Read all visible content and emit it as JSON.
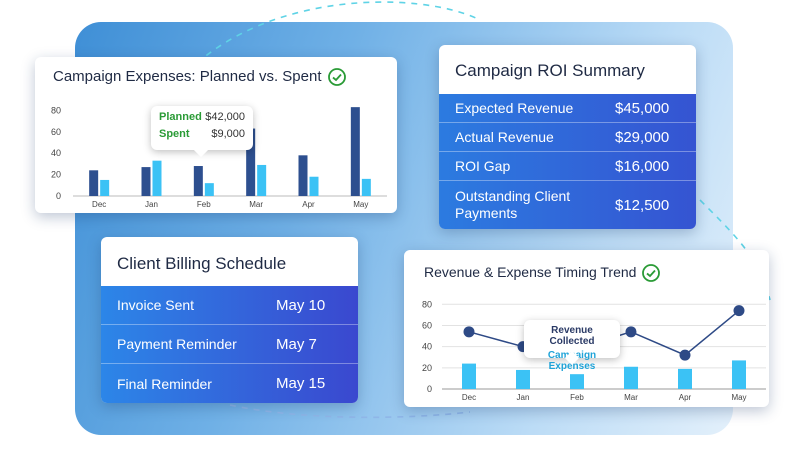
{
  "expenses_card": {
    "title": "Campaign Expenses: Planned vs. Spent",
    "tooltip": {
      "planned_label": "Planned",
      "planned_value": "$42,000",
      "spent_label": "Spent",
      "spent_value": "$9,000"
    }
  },
  "roi_card": {
    "title": "Campaign ROI Summary",
    "rows": [
      {
        "label": "Expected Revenue",
        "value": "$45,000"
      },
      {
        "label": "Actual Revenue",
        "value": "$29,000"
      },
      {
        "label": "ROI Gap",
        "value": "$16,000"
      },
      {
        "label": "Outstanding Client Payments",
        "value": "$12,500"
      }
    ]
  },
  "billing_card": {
    "title": "Client Billing Schedule",
    "rows": [
      {
        "label": "Invoice Sent",
        "value": "May 10"
      },
      {
        "label": "Payment Reminder",
        "value": "May 7"
      },
      {
        "label": "Final Reminder",
        "value": "May 15"
      }
    ]
  },
  "trend_card": {
    "title": "Revenue & Expense Timing Trend",
    "tooltip": {
      "line1": "Revenue Collected",
      "line2": "Campaign Expenses"
    }
  },
  "colors": {
    "planned": "#2d4f8f",
    "spent": "#3bc2f5",
    "revenue_line": "#2e4a86",
    "expense_bar": "#3bc2f5",
    "check": "#2a9b36"
  },
  "chart_data": [
    {
      "type": "bar",
      "title": "Campaign Expenses: Planned vs. Spent",
      "categories": [
        "Dec",
        "Jan",
        "Feb",
        "Mar",
        "Apr",
        "May"
      ],
      "yticks": [
        0,
        20,
        40,
        60,
        80
      ],
      "ylim": [
        0,
        85
      ],
      "series": [
        {
          "name": "Planned",
          "values": [
            24,
            27,
            28,
            63,
            38,
            83
          ]
        },
        {
          "name": "Spent",
          "values": [
            15,
            33,
            12,
            29,
            18,
            16
          ]
        }
      ],
      "grid": false
    },
    {
      "type": "bar",
      "title": "Revenue & Expense Timing Trend",
      "categories": [
        "Dec",
        "Jan",
        "Feb",
        "Mar",
        "Apr",
        "May"
      ],
      "yticks": [
        0,
        20,
        40,
        60,
        80
      ],
      "ylim": [
        0,
        85
      ],
      "series": [
        {
          "name": "Revenue Collected",
          "kind": "line",
          "values": [
            54,
            40,
            38,
            54,
            32,
            74
          ]
        },
        {
          "name": "Campaign Expenses",
          "kind": "bar",
          "values": [
            24,
            18,
            14,
            21,
            19,
            27
          ]
        }
      ],
      "grid": true
    }
  ]
}
